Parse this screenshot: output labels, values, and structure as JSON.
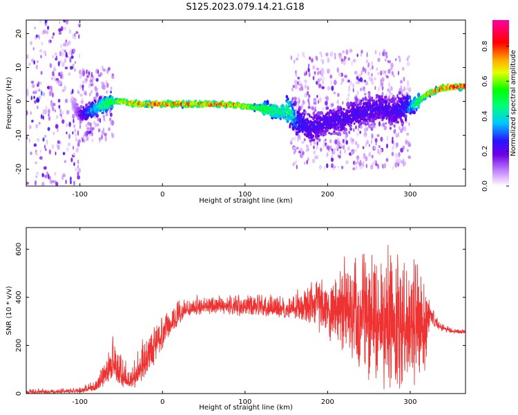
{
  "title": "S125.2023.079.14.21.G18",
  "chart_data": [
    {
      "type": "heatmap",
      "xlabel": "Height of straight line (km)",
      "ylabel": "Frequency (Hz)",
      "xlim": [
        -165,
        367
      ],
      "ylim": [
        -25,
        24
      ],
      "xticks": [
        -100,
        0,
        100,
        200,
        300
      ],
      "yticks": [
        -20,
        -10,
        0,
        10,
        20
      ],
      "grid": false,
      "colorbar": {
        "label": "Normalized spectral amplitude",
        "range": [
          0,
          0.95
        ],
        "ticks": [
          "0.0",
          "0.2",
          "0.4",
          "0.6",
          "0.8"
        ],
        "colormap": "white-purple-blue-cyan-green-yellow-orange-red-magenta"
      },
      "ridge": {
        "x": [
          -165,
          -110,
          -100,
          -90,
          -80,
          -70,
          -60,
          -50,
          -40,
          -30,
          -20,
          -10,
          0,
          20,
          40,
          60,
          80,
          100,
          120,
          140,
          155,
          165,
          180,
          200,
          220,
          240,
          260,
          280,
          295,
          305,
          320,
          340,
          367
        ],
        "y": [
          0,
          0,
          -4,
          -3,
          -2,
          -1,
          0,
          0,
          -0.5,
          -0.8,
          -0.8,
          -0.8,
          -0.8,
          -0.8,
          -0.8,
          -0.8,
          -1,
          -1.5,
          -2,
          -3,
          -3,
          -6,
          -8,
          -6,
          -5,
          -3,
          -2,
          -3,
          -2,
          -1,
          2,
          4,
          4.5
        ],
        "peak_amplitude": [
          0,
          0.05,
          0.2,
          0.35,
          0.45,
          0.55,
          0.6,
          0.7,
          0.8,
          0.85,
          0.85,
          0.85,
          0.85,
          0.85,
          0.85,
          0.85,
          0.85,
          0.75,
          0.6,
          0.55,
          0.5,
          0.3,
          0.25,
          0.25,
          0.25,
          0.25,
          0.25,
          0.25,
          0.3,
          0.5,
          0.8,
          0.9,
          0.95
        ]
      },
      "noise_regions": [
        {
          "x": [
            -165,
            -100
          ],
          "y": [
            -25,
            24
          ],
          "amplitude": 0.3
        },
        {
          "x": [
            -100,
            -60
          ],
          "y": [
            -12,
            10
          ],
          "amplitude": 0.25
        },
        {
          "x": [
            155,
            300
          ],
          "y": [
            -20,
            15
          ],
          "amplitude": 0.2
        }
      ]
    },
    {
      "type": "line",
      "xlabel": "Height of straight line (km)",
      "ylabel": "SNR (10 * v/v)",
      "xlim": [
        -165,
        367
      ],
      "ylim": [
        0,
        690
      ],
      "xticks": [
        -100,
        0,
        100,
        200,
        300
      ],
      "yticks": [
        0,
        200,
        400,
        600
      ],
      "grid": false,
      "series": [
        {
          "color": "#ef3333",
          "envelope": {
            "x": [
              -165,
              -100,
              -80,
              -70,
              -60,
              -50,
              -40,
              -30,
              -20,
              -10,
              0,
              10,
              20,
              30,
              50,
              70,
              100,
              130,
              160,
              190,
              210,
              230,
              250,
              270,
              290,
              305,
              315,
              320,
              325,
              335,
              350,
              367
            ],
            "mean": [
              5,
              10,
              25,
              70,
              110,
              80,
              40,
              80,
              140,
              200,
              240,
              280,
              320,
              345,
              360,
              365,
              355,
              355,
              350,
              360,
              345,
              320,
              300,
              290,
              280,
              275,
              270,
              300,
              330,
              280,
              260,
              255
            ],
            "low": [
              0,
              2,
              10,
              30,
              50,
              20,
              10,
              30,
              60,
              120,
              170,
              240,
              290,
              320,
              330,
              330,
              320,
              320,
              310,
              250,
              200,
              130,
              40,
              15,
              20,
              30,
              20,
              100,
              280,
              260,
              250,
              245
            ],
            "high": [
              20,
              25,
              60,
              150,
              240,
              180,
              100,
              180,
              260,
              280,
              320,
              350,
              390,
              400,
              420,
              410,
              410,
              420,
              430,
              480,
              540,
              600,
              640,
              680,
              620,
              560,
              560,
              420,
              380,
              300,
              275,
              265
            ]
          }
        }
      ]
    }
  ]
}
